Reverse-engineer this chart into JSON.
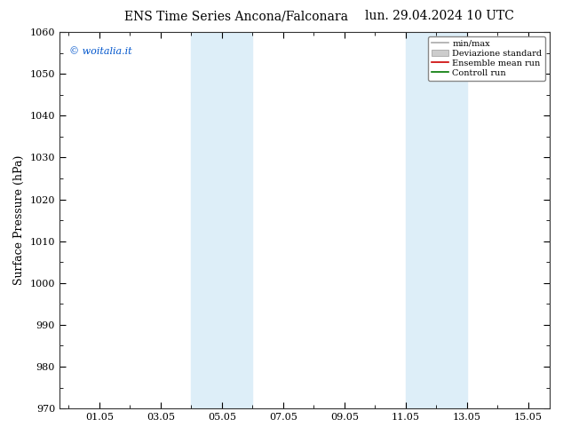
{
  "title_left": "ENS Time Series Ancona/Falconara",
  "title_right": "lun. 29.04.2024 10 UTC",
  "ylabel": "Surface Pressure (hPa)",
  "watermark": "© woitalia.it",
  "ylim": [
    970,
    1060
  ],
  "yticks": [
    970,
    980,
    990,
    1000,
    1010,
    1020,
    1030,
    1040,
    1050,
    1060
  ],
  "xlim_start": -0.3,
  "xlim_end": 15.7,
  "xtick_positions": [
    1,
    3,
    5,
    7,
    9,
    11,
    13,
    15
  ],
  "xtick_labels": [
    "01.05",
    "03.05",
    "05.05",
    "07.05",
    "09.05",
    "11.05",
    "13.05",
    "15.05"
  ],
  "shade_bands": [
    {
      "xstart": 4.0,
      "xend": 6.0,
      "color": "#ddeef8"
    },
    {
      "xstart": 11.0,
      "xend": 13.0,
      "color": "#ddeef8"
    }
  ],
  "legend_items": [
    {
      "label": "min/max",
      "color": "#aaaaaa",
      "type": "line"
    },
    {
      "label": "Deviazione standard",
      "color": "#cccccc",
      "type": "fill"
    },
    {
      "label": "Ensemble mean run",
      "color": "#cc0000",
      "type": "line"
    },
    {
      "label": "Controll run",
      "color": "#007700",
      "type": "line"
    }
  ],
  "background_color": "#ffffff",
  "plot_bg_color": "#ffffff",
  "watermark_color": "#0055cc",
  "title_fontsize": 10,
  "axis_fontsize": 9,
  "tick_fontsize": 8,
  "legend_fontsize": 7
}
